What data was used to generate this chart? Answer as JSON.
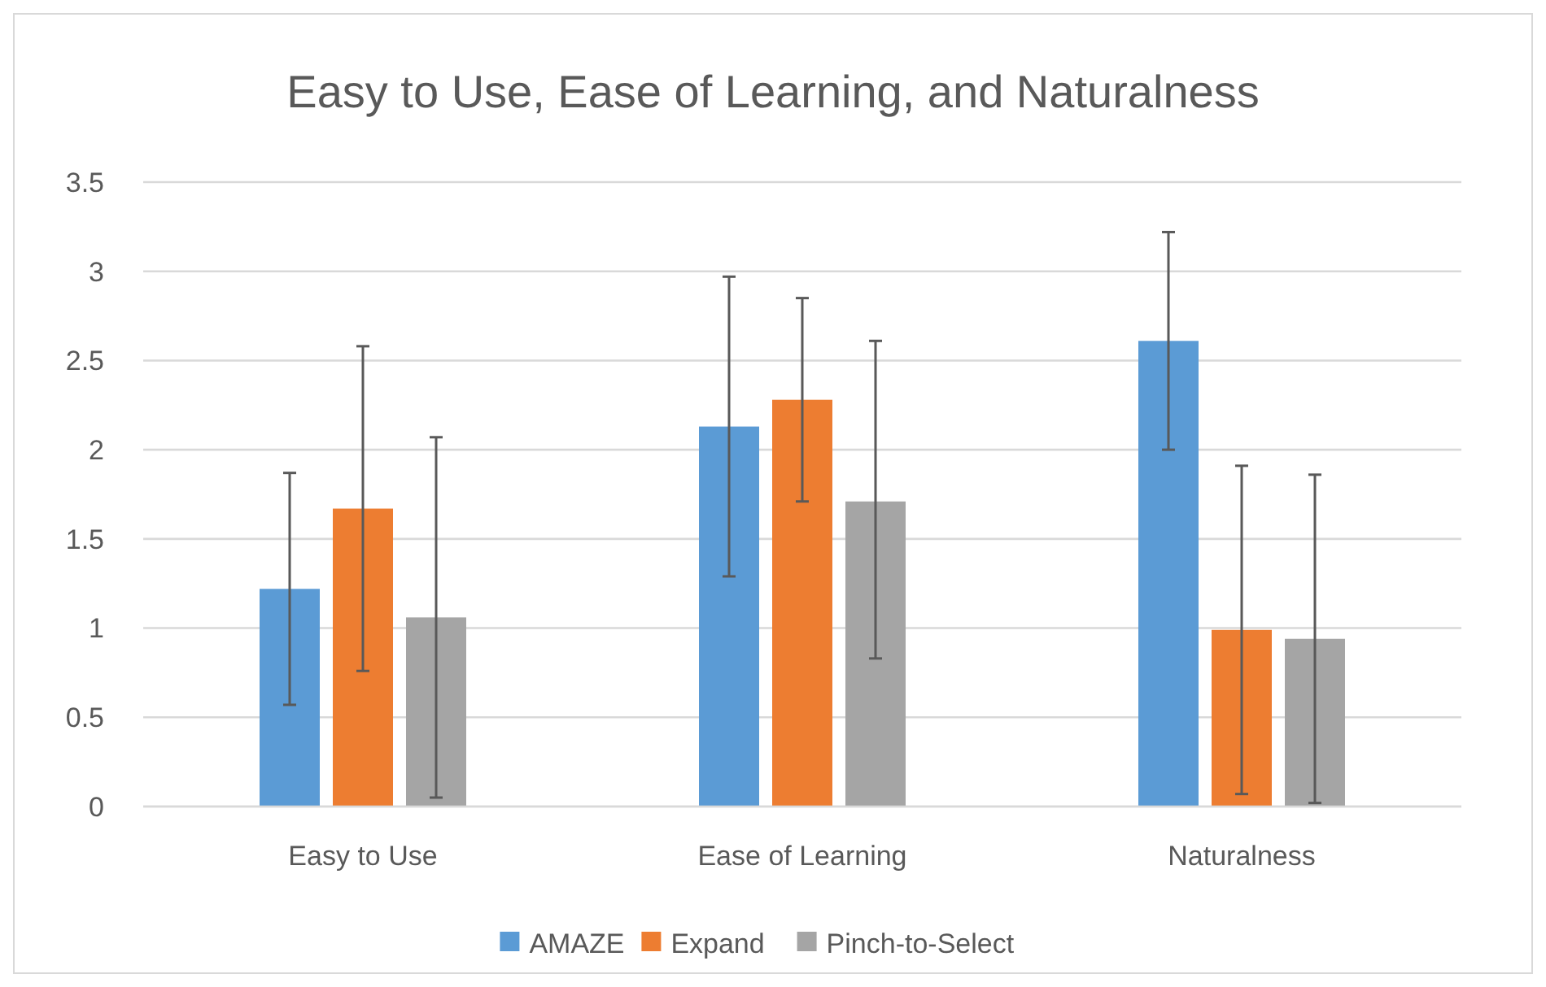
{
  "chart_data": {
    "type": "bar",
    "title": "Easy to Use, Ease of Learning, and Naturalness",
    "categories": [
      "Easy to Use",
      "Ease of Learning",
      "Naturalness"
    ],
    "series": [
      {
        "name": "AMAZE",
        "color": "#5b9bd5",
        "values": [
          1.22,
          2.13,
          2.61
        ],
        "errors": [
          [
            0.57,
            1.87
          ],
          [
            1.29,
            2.97
          ],
          [
            2.0,
            3.22
          ]
        ]
      },
      {
        "name": "Expand",
        "color": "#ed7d31",
        "values": [
          1.67,
          2.28,
          0.99
        ],
        "errors": [
          [
            0.76,
            2.58
          ],
          [
            1.71,
            2.85
          ],
          [
            0.07,
            1.91
          ]
        ]
      },
      {
        "name": "Pinch-to-Select",
        "color": "#a5a5a5",
        "values": [
          1.06,
          1.71,
          0.94
        ],
        "errors": [
          [
            0.05,
            2.07
          ],
          [
            0.83,
            2.61
          ],
          [
            0.02,
            1.86
          ]
        ]
      }
    ],
    "ylim": [
      0,
      3.5
    ],
    "yticks": [
      0,
      0.5,
      1,
      1.5,
      2,
      2.5,
      3,
      3.5
    ],
    "grid": "y",
    "legend": "bottom"
  }
}
